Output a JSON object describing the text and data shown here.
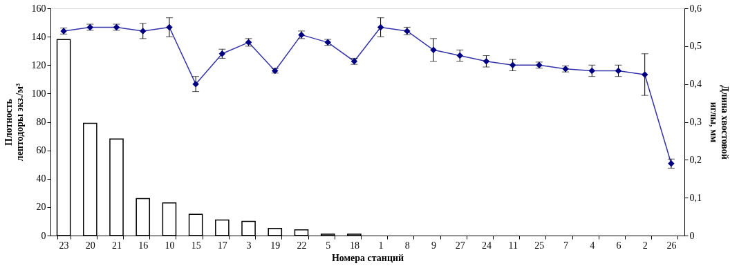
{
  "chart_data": {
    "type": "bar",
    "xlabel": "Номера станций",
    "ylabel": "Плотность\nлептодоры экз./м³",
    "y2label": "Длина хвостовой\nиглы, мм",
    "categories": [
      "23",
      "20",
      "21",
      "16",
      "10",
      "15",
      "17",
      "3",
      "19",
      "22",
      "5",
      "18",
      "1",
      "8",
      "9",
      "27",
      "24",
      "11",
      "25",
      "7",
      "4",
      "6",
      "2",
      "26"
    ],
    "series": [
      {
        "type": "bar",
        "color": "#ffffff",
        "values": [
          138,
          79,
          68,
          26,
          23,
          15,
          11,
          10,
          5,
          4,
          1,
          1,
          null,
          null,
          null,
          null,
          null,
          null,
          null,
          null,
          null,
          null,
          null,
          null
        ]
      },
      {
        "type": "line",
        "axis": "y2",
        "color": "#3333aa",
        "values": [
          0.54,
          0.55,
          0.55,
          0.54,
          0.55,
          0.4,
          0.48,
          0.51,
          0.435,
          0.53,
          0.51,
          0.46,
          0.55,
          0.54,
          0.49,
          0.475,
          0.46,
          0.45,
          0.45,
          0.44,
          0.435,
          0.435,
          0.425,
          0.19
        ],
        "errors": [
          0.008,
          0.008,
          0.008,
          0.02,
          0.025,
          0.02,
          0.012,
          0.01,
          0.006,
          0.01,
          0.008,
          0.008,
          0.025,
          0.01,
          0.03,
          0.015,
          0.015,
          0.015,
          0.008,
          0.008,
          0.015,
          0.015,
          0.055,
          0.012
        ]
      }
    ],
    "ylim": [
      0,
      160
    ],
    "yticks": [
      0,
      20,
      40,
      60,
      80,
      100,
      120,
      140,
      160
    ],
    "y2lim": [
      0,
      0.6
    ],
    "y2ticks": [
      {
        "value": 0,
        "label": "0"
      },
      {
        "value": 0.1,
        "label": "0,1"
      },
      {
        "value": 0.2,
        "label": "0,2"
      },
      {
        "value": 0.3,
        "label": "0,3"
      },
      {
        "value": 0.4,
        "label": "0,4"
      },
      {
        "value": 0.5,
        "label": "0,5"
      },
      {
        "value": 0.6,
        "label": "0,6"
      }
    ],
    "marker": "diamond",
    "grid": false
  }
}
